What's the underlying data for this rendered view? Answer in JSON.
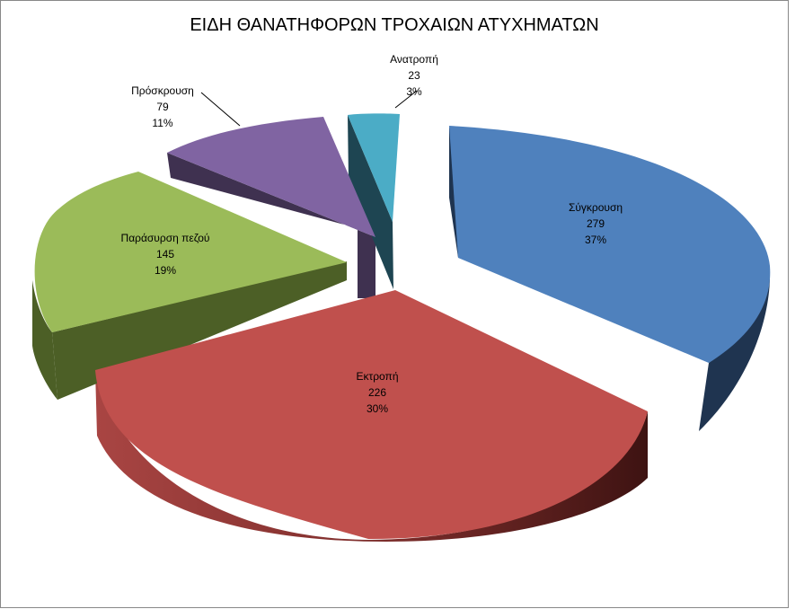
{
  "chart_data": {
    "type": "pie",
    "style": "3d-exploded",
    "title": "ΕΙΔΗ ΘΑΝΑΤΗΦΟΡΩΝ ΤΡΟΧΑΙΩΝ ΑΤΥΧΗΜΑΤΩΝ",
    "legend": "none",
    "slices": [
      {
        "label": "Σύγκρουση",
        "value": 279,
        "percent": "37%",
        "color": "#4F81BD"
      },
      {
        "label": "Εκτροπή",
        "value": 226,
        "percent": "30%",
        "color": "#C0504D"
      },
      {
        "label": "Παράσυρση πεζού",
        "value": 145,
        "percent": "19%",
        "color": "#9BBB59"
      },
      {
        "label": "Πρόσκρουση",
        "value": 79,
        "percent": "11%",
        "color": "#8064A2"
      },
      {
        "label": "Ανατροπή",
        "value": 23,
        "percent": "3%",
        "color": "#4BACC6"
      }
    ]
  }
}
